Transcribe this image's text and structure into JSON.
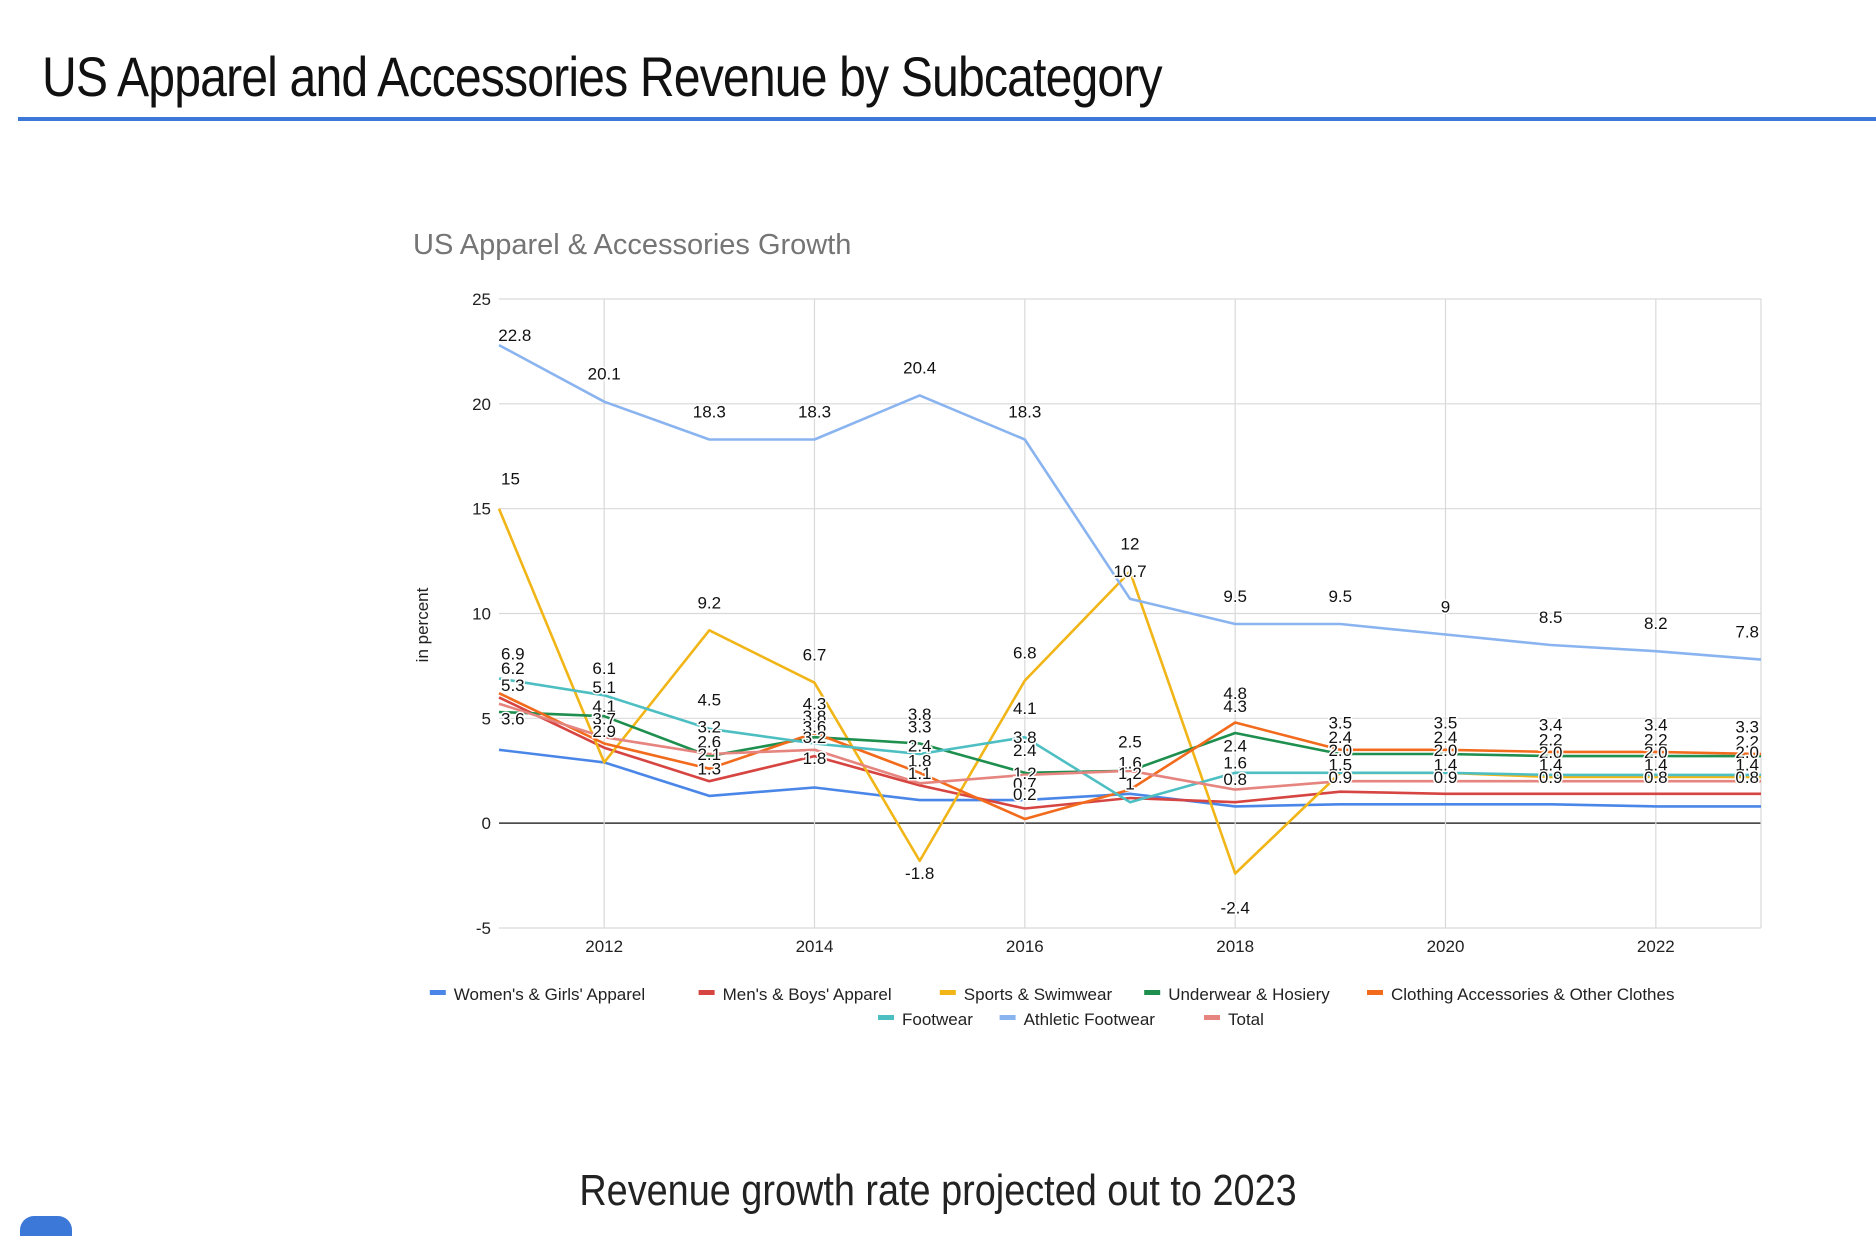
{
  "slide": {
    "title": "US Apparel and Accessories Revenue by Subcategory",
    "caption": "Revenue  growth rate projected out to 2023"
  },
  "colors": {
    "title_rule": "#3c78d8",
    "gridline": "#d9d9d9",
    "zero_line": "#333333"
  },
  "chart_data": {
    "type": "line",
    "title": "US Apparel & Accessories Growth",
    "xlabel": "",
    "ylabel": "in percent",
    "xlim": [
      2011,
      2023
    ],
    "ylim": [
      -5,
      25
    ],
    "xticks": [
      2012,
      2014,
      2016,
      2018,
      2020,
      2022
    ],
    "yticks": [
      -5,
      0,
      5,
      10,
      15,
      20,
      25
    ],
    "grid": true,
    "legend_position": "bottom",
    "x": [
      2011,
      2012,
      2013,
      2014,
      2015,
      2016,
      2017,
      2018,
      2019,
      2020,
      2021,
      2022,
      2023
    ],
    "series": [
      {
        "name": "Women's & Girls' Apparel",
        "color": "#4a86e8",
        "values": [
          3.5,
          2.9,
          1.3,
          1.7,
          1.1,
          1.1,
          1.4,
          0.8,
          0.9,
          0.9,
          0.9,
          0.8,
          0.8
        ]
      },
      {
        "name": "Men's & Boys' Apparel",
        "color": "#d64541",
        "values": [
          6.0,
          3.6,
          2.0,
          3.2,
          1.8,
          0.7,
          1.2,
          1.0,
          1.5,
          1.4,
          1.4,
          1.4,
          1.4
        ]
      },
      {
        "name": "Sports & Swimwear",
        "color": "#f1b517",
        "values": [
          15,
          2.9,
          9.2,
          6.7,
          -1.8,
          6.8,
          12,
          -2.4,
          2.4,
          2.4,
          2.2,
          2.2,
          2.2
        ]
      },
      {
        "name": "Underwear & Hosiery",
        "color": "#1e8f4e",
        "values": [
          5.3,
          5.1,
          3.2,
          4.1,
          3.8,
          2.4,
          2.5,
          4.3,
          3.3,
          3.3,
          3.2,
          3.2,
          3.2
        ]
      },
      {
        "name": "Clothing Accessories & Other Clothes",
        "color": "#f26b1d",
        "values": [
          6.2,
          3.8,
          2.6,
          4.3,
          2.4,
          0.2,
          1.6,
          4.8,
          3.5,
          3.5,
          3.4,
          3.4,
          3.3
        ]
      },
      {
        "name": "Footwear",
        "color": "#4dbfc3",
        "values": [
          6.9,
          6.1,
          4.5,
          3.8,
          3.3,
          4.1,
          1.0,
          2.4,
          2.4,
          2.4,
          2.3,
          2.3,
          2.3
        ]
      },
      {
        "name": "Athletic Footwear",
        "color": "#8ab4f0",
        "values": [
          22.8,
          20.1,
          18.3,
          18.3,
          20.4,
          18.3,
          10.7,
          9.5,
          9.5,
          9.0,
          8.5,
          8.2,
          7.8
        ]
      },
      {
        "name": "Total",
        "color": "#e6857f",
        "values": [
          5.7,
          4.1,
          3.3,
          3.5,
          1.9,
          2.3,
          2.5,
          1.6,
          2.0,
          2.0,
          2.0,
          2.0,
          2.0
        ]
      }
    ],
    "data_labels": [
      "22.8",
      "20.1",
      "18.3",
      "18.3",
      "20.4",
      "18.3",
      "10.7",
      "9.5",
      "9.5",
      "9",
      "8.5",
      "8.2",
      "7.8",
      "15",
      "9.2",
      "6.7",
      "6.8",
      "12",
      "-1.8",
      "-2.4",
      "6.9",
      "6.2",
      "5.3",
      "3.6",
      "6.1",
      "5.1",
      "4.1",
      "3.7",
      "2.9",
      "4.5",
      "3.2",
      "2.6",
      "2.1",
      "1.3",
      "4.3",
      "3.8",
      "3.6",
      "3.2",
      "1.8",
      "3.8",
      "3.3",
      "2.4",
      "1.8",
      "1.1",
      "4.1",
      "3.8",
      "2.4",
      "1.2",
      "0.7",
      "0.2",
      "2.5",
      "1.6",
      "1.2",
      "1",
      "4.8",
      "4.3",
      "2.4",
      "1.6",
      "0.8",
      "3.5",
      "2.4",
      "2.0",
      "1.5",
      "0.9",
      "3.5",
      "2.4",
      "2.0",
      "1.4",
      "0.9",
      "3.4",
      "2.2",
      "2.0",
      "1.4",
      "0.9",
      "3.4",
      "2.2",
      "2.0",
      "1.4",
      "0.8",
      "3.3",
      "2.2",
      "2.0",
      "1.4",
      "0.8"
    ]
  }
}
